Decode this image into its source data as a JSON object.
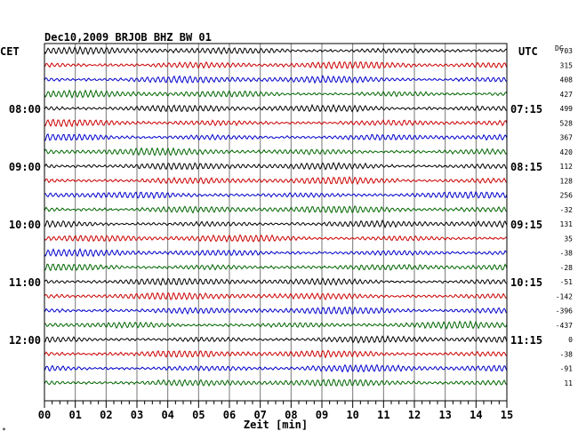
{
  "chart_data": {
    "type": "line",
    "title": "Dec10,2009   BRJOB BHZ BW 01",
    "left_header": "CET",
    "right_header": "UTC",
    "dc_header": "DC",
    "xlabel": "Zeit [min]",
    "x_ticks": [
      "00",
      "01",
      "02",
      "03",
      "04",
      "05",
      "06",
      "07",
      "08",
      "09",
      "10",
      "11",
      "12",
      "13",
      "14",
      "15"
    ],
    "xlim": [
      0,
      15
    ],
    "trace_colors": [
      "#000000",
      "#cc0000",
      "#0000cc",
      "#006600"
    ],
    "dc_offsets": [
      "703",
      "315",
      "408",
      "427",
      "499",
      "528",
      "367",
      "420",
      "112",
      "128",
      "256",
      "-32",
      "131",
      "35",
      "-38",
      "-28",
      "-51",
      "-142",
      "-396",
      "-437",
      "0",
      "-38",
      "-91",
      "11"
    ],
    "left_hour_labels": [
      {
        "row": 4,
        "label": "08:00"
      },
      {
        "row": 8,
        "label": "09:00"
      },
      {
        "row": 12,
        "label": "10:00"
      },
      {
        "row": 16,
        "label": "11:00"
      },
      {
        "row": 20,
        "label": "12:00"
      }
    ],
    "right_hour_labels": [
      {
        "row": 4,
        "label": "07:15"
      },
      {
        "row": 8,
        "label": "08:15"
      },
      {
        "row": 12,
        "label": "09:15"
      },
      {
        "row": 16,
        "label": "10:15"
      },
      {
        "row": 20,
        "label": "11:15"
      }
    ],
    "grid": true
  },
  "corner_mark": "*"
}
